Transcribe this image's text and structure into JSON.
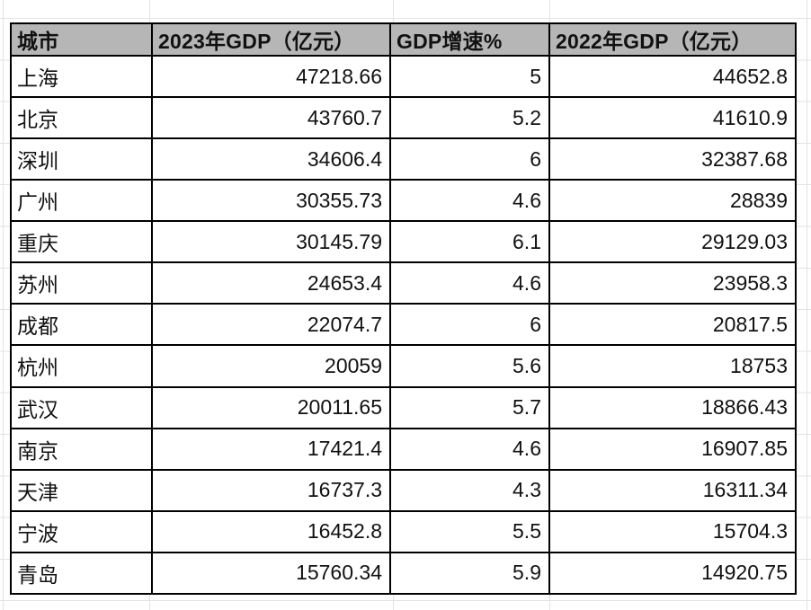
{
  "table": {
    "columns": [
      "城市",
      "2023年GDP（亿元）",
      "GDP增速%",
      "2022年GDP（亿元）"
    ],
    "rows": [
      {
        "city": "上海",
        "gdp2023": "47218.66",
        "growth": "5",
        "gdp2022": "44652.8"
      },
      {
        "city": "北京",
        "gdp2023": "43760.7",
        "growth": "5.2",
        "gdp2022": "41610.9"
      },
      {
        "city": "深圳",
        "gdp2023": "34606.4",
        "growth": "6",
        "gdp2022": "32387.68"
      },
      {
        "city": "广州",
        "gdp2023": "30355.73",
        "growth": "4.6",
        "gdp2022": "28839"
      },
      {
        "city": "重庆",
        "gdp2023": "30145.79",
        "growth": "6.1",
        "gdp2022": "29129.03"
      },
      {
        "city": "苏州",
        "gdp2023": "24653.4",
        "growth": "4.6",
        "gdp2022": "23958.3"
      },
      {
        "city": "成都",
        "gdp2023": "22074.7",
        "growth": "6",
        "gdp2022": "20817.5"
      },
      {
        "city": "杭州",
        "gdp2023": "20059",
        "growth": "5.6",
        "gdp2022": "18753"
      },
      {
        "city": "武汉",
        "gdp2023": "20011.65",
        "growth": "5.7",
        "gdp2022": "18866.43"
      },
      {
        "city": "南京",
        "gdp2023": "17421.4",
        "growth": "4.6",
        "gdp2022": "16907.85"
      },
      {
        "city": "天津",
        "gdp2023": "16737.3",
        "growth": "4.3",
        "gdp2022": "16311.34"
      },
      {
        "city": "宁波",
        "gdp2023": "16452.8",
        "growth": "5.5",
        "gdp2022": "15704.3"
      },
      {
        "city": "青岛",
        "gdp2023": "15760.34",
        "growth": "5.9",
        "gdp2022": "14920.75"
      }
    ],
    "header_bg_color": "#b6b6b6",
    "border_color": "#000000",
    "gridline_color": "#e3e3e3"
  },
  "chart_data": {
    "type": "table",
    "title": "",
    "columns": [
      "城市",
      "2023年GDP（亿元）",
      "GDP增速%",
      "2022年GDP（亿元）"
    ],
    "rows": [
      [
        "上海",
        47218.66,
        5,
        44652.8
      ],
      [
        "北京",
        43760.7,
        5.2,
        41610.9
      ],
      [
        "深圳",
        34606.4,
        6,
        32387.68
      ],
      [
        "广州",
        30355.73,
        4.6,
        28839
      ],
      [
        "重庆",
        30145.79,
        6.1,
        29129.03
      ],
      [
        "苏州",
        24653.4,
        4.6,
        23958.3
      ],
      [
        "成都",
        22074.7,
        6,
        20817.5
      ],
      [
        "杭州",
        20059,
        5.6,
        18753
      ],
      [
        "武汉",
        20011.65,
        5.7,
        18866.43
      ],
      [
        "南京",
        17421.4,
        4.6,
        16907.85
      ],
      [
        "天津",
        16737.3,
        4.3,
        16311.34
      ],
      [
        "宁波",
        16452.8,
        5.5,
        15704.3
      ],
      [
        "青岛",
        15760.34,
        5.9,
        14920.75
      ]
    ]
  }
}
